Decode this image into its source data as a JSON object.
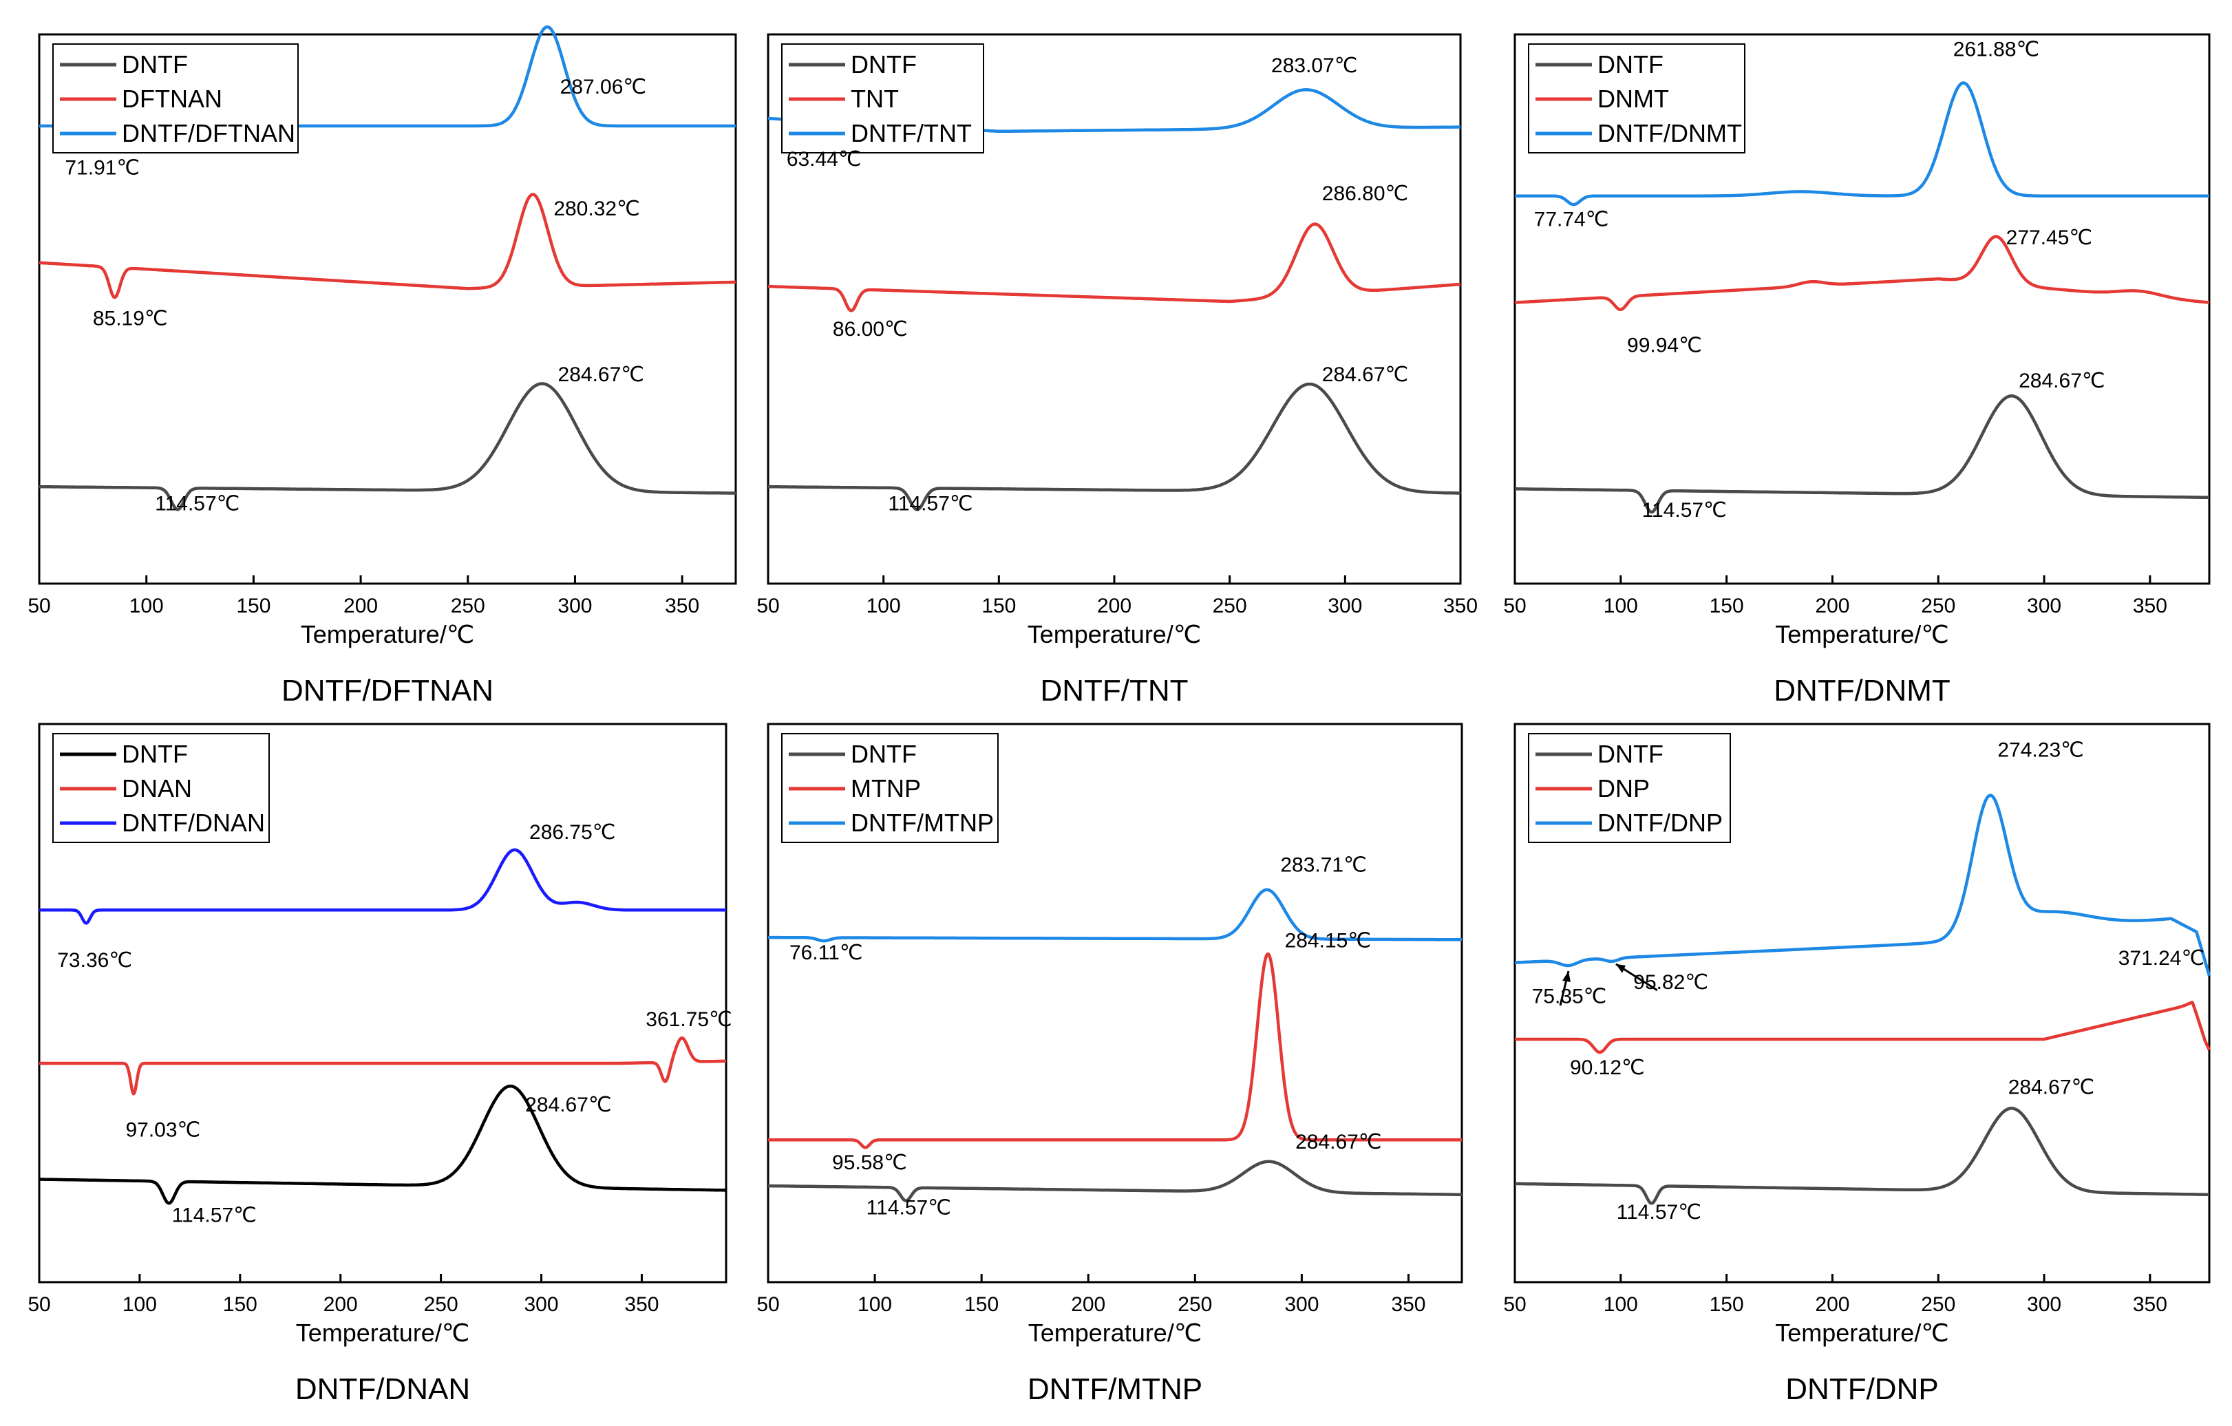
{
  "colors": {
    "dntf": "#4a4a4a",
    "dntf_dnan": "#000000",
    "single": "#e53935",
    "mix": "#1e88e5",
    "mix_dnan": "#1a1aff"
  },
  "chart_data": [
    {
      "type": "line",
      "panel": "DNTF/DFTNAN",
      "title": "DNTF/DFTNAN",
      "xlabel": "Temperature/℃",
      "ylabel": "",
      "xlim": [
        50,
        375
      ],
      "xticks": [
        50,
        100,
        150,
        200,
        250,
        300,
        350
      ],
      "legend": "top-left",
      "series": [
        {
          "name": "DNTF",
          "color": "#4a4a4a",
          "offset": 0.0,
          "baseline": [
            [
              50,
              0.3
            ],
            [
              375,
              0.24
            ]
          ],
          "features": [
            [
              114.57,
              -0.2,
              3
            ],
            [
              284.67,
              1.0,
              16
            ]
          ]
        },
        {
          "name": "DFTNAN",
          "color": "#e53935",
          "offset": 1.78,
          "baseline": [
            [
              50,
              0.6
            ],
            [
              250,
              0.36
            ],
            [
              375,
              0.42
            ]
          ],
          "features": [
            [
              85.19,
              -0.28,
              2.5
            ],
            [
              280.32,
              0.86,
              7
            ]
          ]
        },
        {
          "name": "DNTF/DFTNAN",
          "color": "#1e88e5",
          "offset": 2.95,
          "baseline": [
            [
              50,
              0.7
            ],
            [
              375,
              0.7
            ]
          ],
          "features": [
            [
              71.91,
              -0.14,
              3
            ],
            [
              287.06,
              0.92,
              8
            ]
          ]
        }
      ],
      "annotations": [
        {
          "text": "287.06℃",
          "x": 293,
          "y": 3.95
        },
        {
          "text": "71.91℃",
          "x": 62,
          "y": 3.2
        },
        {
          "text": "280.32℃",
          "x": 290,
          "y": 2.82
        },
        {
          "text": "85.19℃",
          "x": 75,
          "y": 1.8
        },
        {
          "text": "284.67℃",
          "x": 292,
          "y": 1.28
        },
        {
          "text": "114.57℃",
          "x": 104,
          "y": 0.08
        }
      ]
    },
    {
      "type": "line",
      "panel": "DNTF/TNT",
      "title": "DNTF/TNT",
      "xlabel": "Temperature/℃",
      "ylabel": "",
      "xlim": [
        50,
        350
      ],
      "xticks": [
        50,
        100,
        150,
        200,
        250,
        300,
        350
      ],
      "legend": "top-left",
      "series": [
        {
          "name": "DNTF",
          "color": "#4a4a4a",
          "offset": 0.0,
          "baseline": [
            [
              50,
              0.3
            ],
            [
              350,
              0.24
            ]
          ],
          "features": [
            [
              114.57,
              -0.2,
              3
            ],
            [
              284.67,
              1.0,
              16
            ]
          ]
        },
        {
          "name": "TNT",
          "color": "#e53935",
          "offset": 1.72,
          "baseline": [
            [
              50,
              0.44
            ],
            [
              250,
              0.3
            ],
            [
              350,
              0.46
            ]
          ],
          "features": [
            [
              86.0,
              -0.2,
              2.5
            ],
            [
              286.8,
              0.66,
              8
            ]
          ]
        },
        {
          "name": "DNTF/TNT",
          "color": "#1e88e5",
          "offset": 3.0,
          "baseline": [
            [
              50,
              0.72
            ],
            [
              150,
              0.6
            ],
            [
              350,
              0.64
            ]
          ],
          "features": [
            [
              63.44,
              -0.1,
              2.5
            ],
            [
              283.07,
              0.36,
              14
            ]
          ]
        }
      ],
      "annotations": [
        {
          "text": "283.07℃",
          "x": 268,
          "y": 4.15
        },
        {
          "text": "63.44℃",
          "x": 58,
          "y": 3.28
        },
        {
          "text": "286.80℃",
          "x": 290,
          "y": 2.96
        },
        {
          "text": "86.00℃",
          "x": 78,
          "y": 1.7
        },
        {
          "text": "284.67℃",
          "x": 290,
          "y": 1.28
        },
        {
          "text": "114.57℃",
          "x": 102,
          "y": 0.08
        }
      ]
    },
    {
      "type": "line",
      "panel": "DNTF/DNMT",
      "title": "DNTF/DNMT",
      "xlabel": "Temperature/℃",
      "ylabel": "",
      "xlim": [
        50,
        378
      ],
      "xticks": [
        50,
        100,
        150,
        200,
        250,
        300,
        350
      ],
      "legend": "top-left",
      "annotation_font": "serif",
      "series": [
        {
          "name": "DNTF",
          "color": "#4a4a4a",
          "offset": 0.0,
          "baseline": [
            [
              50,
              0.28
            ],
            [
              378,
              0.2
            ]
          ],
          "features": [
            [
              114.57,
              -0.2,
              3
            ],
            [
              284.67,
              0.92,
              14
            ]
          ]
        },
        {
          "name": "DNMT",
          "color": "#e53935",
          "offset": 1.65,
          "baseline": [
            [
              50,
              0.36
            ],
            [
              250,
              0.58
            ],
            [
              378,
              0.36
            ]
          ],
          "features": [
            [
              99.94,
              -0.12,
              3
            ],
            [
              277.45,
              0.44,
              7
            ],
            [
              190,
              0.04,
              6
            ],
            [
              345,
              0.05,
              10
            ]
          ]
        },
        {
          "name": "DNTF/DNMT",
          "color": "#1e88e5",
          "offset": 2.6,
          "baseline": [
            [
              50,
              0.4
            ],
            [
              378,
              0.4
            ]
          ],
          "features": [
            [
              77.74,
              -0.08,
              3
            ],
            [
              261.88,
              1.05,
              9
            ],
            [
              185,
              0.04,
              15
            ]
          ]
        }
      ],
      "annotations": [
        {
          "text": "261.88℃",
          "x": 257,
          "y": 4.3
        },
        {
          "text": "77.74℃",
          "x": 59,
          "y": 2.72
        },
        {
          "text": "277.45℃",
          "x": 282,
          "y": 2.55
        },
        {
          "text": "99.94℃",
          "x": 103,
          "y": 1.55
        },
        {
          "text": "284.67℃",
          "x": 288,
          "y": 1.22
        },
        {
          "text": "114.57℃",
          "x": 110,
          "y": 0.02
        }
      ]
    },
    {
      "type": "line",
      "panel": "DNTF/DNAN",
      "title": "DNTF/DNAN",
      "xlabel": "Temperature/℃",
      "ylabel": "",
      "xlim": [
        50,
        392
      ],
      "xticks": [
        50,
        100,
        150,
        200,
        250,
        300,
        350
      ],
      "legend": "top-left",
      "annotation_font": "serif",
      "series": [
        {
          "name": "DNTF",
          "color": "#000000",
          "offset": 0.0,
          "baseline": [
            [
              50,
              0.34
            ],
            [
              392,
              0.24
            ]
          ],
          "features": [
            [
              114.57,
              -0.2,
              3
            ],
            [
              284.67,
              0.92,
              14
            ]
          ]
        },
        {
          "name": "DNAN",
          "color": "#e53935",
          "offset": 1.3,
          "baseline": [
            [
              50,
              0.1
            ],
            [
              340,
              0.1
            ],
            [
              392,
              0.12
            ]
          ],
          "features": [
            [
              97.03,
              -0.28,
              1.5
            ],
            [
              361.75,
              -0.18,
              2
            ],
            [
              370,
              0.22,
              3
            ]
          ]
        },
        {
          "name": "DNTF/DNAN",
          "color": "#1a1aff",
          "offset": 2.35,
          "baseline": [
            [
              50,
              0.45
            ],
            [
              392,
              0.45
            ]
          ],
          "features": [
            [
              73.36,
              -0.12,
              2
            ],
            [
              286.75,
              0.55,
              9
            ],
            [
              318,
              0.07,
              8
            ]
          ]
        }
      ],
      "annotations": [
        {
          "text": "286.75℃",
          "x": 294,
          "y": 3.45
        },
        {
          "text": "73.36℃",
          "x": 59,
          "y": 2.28
        },
        {
          "text": "361.75℃",
          "x": 352,
          "y": 1.74
        },
        {
          "text": "97.03℃",
          "x": 93,
          "y": 0.73
        },
        {
          "text": "284.67℃",
          "x": 292,
          "y": 0.96
        },
        {
          "text": "114.57℃",
          "x": 116,
          "y": -0.05
        }
      ]
    },
    {
      "type": "line",
      "panel": "DNTF/MTNP",
      "title": "DNTF/MTNP",
      "xlabel": "Temperature/℃",
      "ylabel": "",
      "xlim": [
        50,
        375
      ],
      "xticks": [
        50,
        100,
        150,
        200,
        250,
        300,
        350
      ],
      "legend": "top-left",
      "series": [
        {
          "name": "DNTF",
          "color": "#4a4a4a",
          "offset": 0.0,
          "baseline": [
            [
              50,
              0.28
            ],
            [
              375,
              0.2
            ]
          ],
          "features": [
            [
              114.57,
              -0.12,
              2.5
            ],
            [
              284.67,
              0.28,
              12
            ]
          ]
        },
        {
          "name": "MTNP",
          "color": "#e53935",
          "offset": 0.5,
          "baseline": [
            [
              50,
              0.2
            ],
            [
              375,
              0.2
            ]
          ],
          "features": [
            [
              95.58,
              -0.07,
              2
            ],
            [
              284.15,
              1.7,
              5
            ]
          ]
        },
        {
          "name": "DNTF/MTNP",
          "color": "#1e88e5",
          "offset": 2.45,
          "baseline": [
            [
              50,
              0.1
            ],
            [
              375,
              0.08
            ]
          ],
          "features": [
            [
              76.11,
              -0.03,
              3
            ],
            [
              283.71,
              0.45,
              8
            ]
          ]
        }
      ],
      "annotations": [
        {
          "text": "283.71℃",
          "x": 290,
          "y": 3.15
        },
        {
          "text": "76.11℃",
          "x": 60,
          "y": 2.35
        },
        {
          "text": "284.15℃",
          "x": 292,
          "y": 2.46
        },
        {
          "text": "95.58℃",
          "x": 80,
          "y": 0.43
        },
        {
          "text": "284.67℃",
          "x": 297,
          "y": 0.62
        },
        {
          "text": "114.57℃",
          "x": 96,
          "y": 0.02
        }
      ]
    },
    {
      "type": "line",
      "panel": "DNTF/DNP",
      "title": "DNTF/DNP",
      "xlabel": "Temperature/℃",
      "ylabel": "",
      "xlim": [
        50,
        378
      ],
      "xticks": [
        50,
        100,
        150,
        200,
        250,
        300,
        350
      ],
      "legend": "top-left",
      "series": [
        {
          "name": "DNTF",
          "color": "#4a4a4a",
          "offset": 0.0,
          "baseline": [
            [
              50,
              0.3
            ],
            [
              378,
              0.2
            ]
          ],
          "features": [
            [
              114.57,
              -0.16,
              2.5
            ],
            [
              284.67,
              0.76,
              13
            ]
          ]
        },
        {
          "name": "DNP",
          "color": "#e53935",
          "offset": 1.6,
          "baseline": [
            [
              50,
              0.02
            ],
            [
              300,
              0.02
            ],
            [
              370,
              0.34
            ],
            [
              376,
              0.0
            ],
            [
              378,
              -0.08
            ]
          ],
          "features": [
            [
              90.12,
              -0.12,
              3
            ],
            [
              371.24,
              0.02,
              3
            ]
          ]
        },
        {
          "name": "DNTF/DNP",
          "color": "#1e88e5",
          "offset": 2.2,
          "baseline": [
            [
              50,
              0.12
            ],
            [
              250,
              0.3
            ],
            [
              360,
              0.52
            ],
            [
              372,
              0.4
            ],
            [
              378,
              0.0
            ]
          ],
          "features": [
            [
              75.35,
              -0.05,
              4
            ],
            [
              95.82,
              -0.03,
              3
            ],
            [
              274.23,
              1.22,
              8
            ],
            [
              300,
              0.18,
              20
            ]
          ]
        }
      ],
      "annotations": [
        {
          "text": "274.23℃",
          "x": 278,
          "y": 4.2
        },
        {
          "text": "75.35℃",
          "x": 58,
          "y": 1.95
        },
        {
          "text": "95.82℃",
          "x": 106,
          "y": 2.08
        },
        {
          "text": "371.24℃",
          "x": 335,
          "y": 2.3
        },
        {
          "text": "90.12℃",
          "x": 76,
          "y": 1.3
        },
        {
          "text": "284.67℃",
          "x": 283,
          "y": 1.12
        },
        {
          "text": "114.57℃",
          "x": 98,
          "y": -0.02
        }
      ]
    }
  ]
}
